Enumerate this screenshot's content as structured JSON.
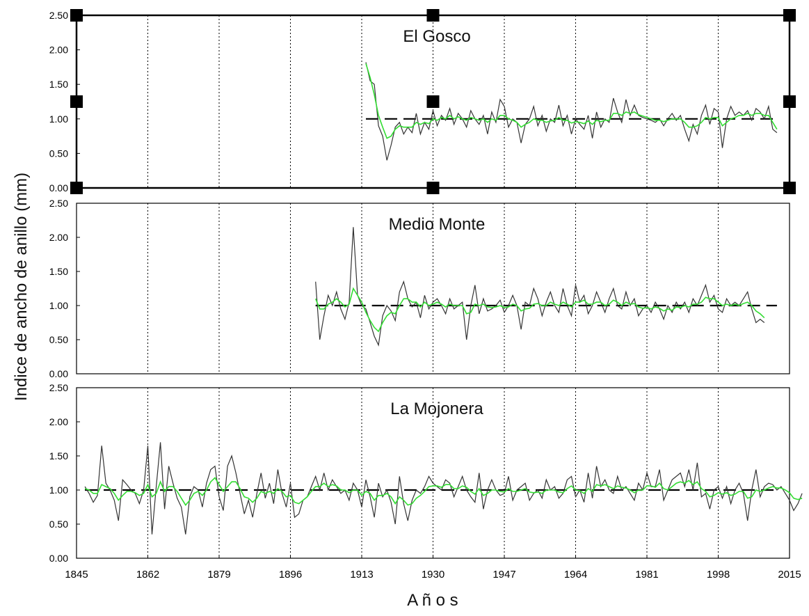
{
  "chart_data": {
    "type": "line",
    "ylabel": "Indice de ancho de anillo (mm)",
    "xlabel": "A ñ o s",
    "xlim": [
      1845,
      2015
    ],
    "xticks": [
      1845,
      1862,
      1879,
      1896,
      1913,
      1930,
      1947,
      1964,
      1981,
      1998,
      2015
    ],
    "yticks": [
      "0.00",
      "0.50",
      "1.00",
      "1.50",
      "2.00",
      "2.50"
    ],
    "ylim": [
      0,
      2.5
    ],
    "grid": "vertical dotted",
    "colors": {
      "index": "#333333",
      "smooth": "#33dd33",
      "mean": "#000000"
    },
    "panels": [
      {
        "title": "El Gosco",
        "selected": true,
        "start": 1914,
        "mean_line": {
          "from": 1914,
          "to": 2012,
          "value": 1.0
        },
        "index": [
          1.82,
          1.55,
          1.5,
          0.9,
          0.75,
          0.4,
          0.62,
          0.88,
          0.95,
          0.78,
          0.88,
          0.8,
          1.08,
          0.78,
          0.95,
          0.85,
          1.12,
          0.9,
          1.05,
          0.98,
          1.15,
          0.92,
          1.08,
          1.0,
          0.88,
          1.12,
          1.0,
          0.92,
          1.05,
          0.78,
          1.1,
          0.95,
          1.28,
          1.18,
          0.88,
          1.0,
          0.95,
          0.65,
          0.92,
          1.0,
          1.18,
          0.9,
          1.05,
          0.82,
          1.0,
          0.95,
          1.2,
          0.9,
          1.05,
          0.78,
          1.0,
          0.92,
          0.85,
          1.05,
          0.72,
          1.1,
          0.88,
          1.0,
          0.95,
          1.3,
          1.1,
          0.95,
          1.28,
          1.05,
          1.2,
          1.05,
          1.02,
          1.0,
          0.98,
          0.95,
          1.0,
          0.9,
          1.0,
          1.08,
          0.98,
          1.05,
          0.85,
          0.68,
          0.92,
          0.78,
          1.05,
          1.2,
          0.92,
          1.15,
          1.1,
          0.58,
          1.0,
          1.18,
          1.05,
          1.1,
          1.05,
          1.12,
          0.98,
          1.15,
          1.1,
          1.0,
          1.18,
          0.85,
          0.8
        ],
        "smooth": [
          1.8,
          1.6,
          1.35,
          1.05,
          0.88,
          0.72,
          0.75,
          0.85,
          0.9,
          0.88,
          0.88,
          0.88,
          0.95,
          0.92,
          0.95,
          0.93,
          1.0,
          0.98,
          1.02,
          1.0,
          1.05,
          1.0,
          1.03,
          1.0,
          0.98,
          1.02,
          1.0,
          0.98,
          1.0,
          0.95,
          1.0,
          0.98,
          1.05,
          1.05,
          1.0,
          0.98,
          0.95,
          0.88,
          0.92,
          0.95,
          1.0,
          0.98,
          0.98,
          0.95,
          0.97,
          0.98,
          1.02,
          0.98,
          0.98,
          0.94,
          0.96,
          0.95,
          0.93,
          0.97,
          0.92,
          0.98,
          0.96,
          0.98,
          0.98,
          1.08,
          1.08,
          1.05,
          1.1,
          1.08,
          1.1,
          1.06,
          1.04,
          1.02,
          1.0,
          0.98,
          0.98,
          0.96,
          0.98,
          1.0,
          1.0,
          1.0,
          0.95,
          0.88,
          0.88,
          0.9,
          0.95,
          1.02,
          1.0,
          1.02,
          1.02,
          0.9,
          0.95,
          1.0,
          1.02,
          1.05,
          1.05,
          1.08,
          1.05,
          1.08,
          1.08,
          1.05,
          1.05,
          0.95,
          0.85
        ]
      },
      {
        "title": "Medio Monte",
        "selected": false,
        "start": 1902,
        "mean_line": {
          "from": 1902,
          "to": 2012,
          "value": 1.0
        },
        "index": [
          1.35,
          0.5,
          0.85,
          1.15,
          1.0,
          1.2,
          0.95,
          0.8,
          1.05,
          2.15,
          1.15,
          1.0,
          0.95,
          0.75,
          0.55,
          0.42,
          0.85,
          1.0,
          0.92,
          0.78,
          1.2,
          1.35,
          1.1,
          0.98,
          1.05,
          0.82,
          1.15,
          0.95,
          1.05,
          1.1,
          1.0,
          0.88,
          1.1,
          0.95,
          1.0,
          1.05,
          0.5,
          1.0,
          1.3,
          0.88,
          1.1,
          0.92,
          0.95,
          1.0,
          1.08,
          0.9,
          1.0,
          1.15,
          1.0,
          0.65,
          1.05,
          1.0,
          1.25,
          1.1,
          0.85,
          1.05,
          1.2,
          1.0,
          0.9,
          1.25,
          1.0,
          0.85,
          1.3,
          1.05,
          1.15,
          0.88,
          1.0,
          1.2,
          1.05,
          0.9,
          1.1,
          1.25,
          1.0,
          0.95,
          1.2,
          1.0,
          1.1,
          0.85,
          0.95,
          1.0,
          0.9,
          1.05,
          0.95,
          0.8,
          1.0,
          0.9,
          1.05,
          0.95,
          1.05,
          0.9,
          1.1,
          1.0,
          1.15,
          1.3,
          1.05,
          1.15,
          0.95,
          0.9,
          1.1,
          1.0,
          1.05,
          1.0,
          1.1,
          1.2,
          0.95,
          0.75,
          0.8,
          0.75
        ],
        "smooth": [
          1.1,
          0.95,
          0.95,
          1.02,
          1.05,
          1.1,
          1.05,
          0.98,
          1.02,
          1.25,
          1.15,
          1.05,
          0.9,
          0.78,
          0.68,
          0.62,
          0.75,
          0.85,
          0.9,
          0.88,
          1.0,
          1.1,
          1.1,
          1.05,
          1.05,
          0.98,
          1.05,
          1.0,
          1.02,
          1.05,
          1.02,
          0.98,
          1.02,
          1.0,
          1.0,
          1.0,
          0.88,
          0.9,
          1.02,
          1.0,
          1.02,
          0.98,
          0.97,
          0.98,
          1.0,
          0.97,
          0.98,
          1.02,
          1.0,
          0.92,
          0.95,
          0.96,
          1.02,
          1.03,
          1.0,
          1.0,
          1.05,
          1.02,
          1.0,
          1.05,
          1.02,
          0.98,
          1.05,
          1.05,
          1.08,
          1.02,
          1.02,
          1.05,
          1.05,
          1.0,
          1.02,
          1.08,
          1.05,
          1.0,
          1.05,
          1.02,
          1.03,
          0.98,
          0.96,
          0.97,
          0.95,
          0.98,
          0.96,
          0.92,
          0.95,
          0.93,
          0.98,
          0.97,
          1.0,
          0.98,
          1.02,
          1.02,
          1.05,
          1.12,
          1.1,
          1.1,
          1.05,
          1.0,
          1.02,
          1.0,
          1.02,
          1.0,
          1.03,
          1.05,
          1.0,
          0.92,
          0.88,
          0.82
        ]
      },
      {
        "title": "La Mojonera",
        "selected": false,
        "start": 1847,
        "mean_line": {
          "from": 1847,
          "to": 2012,
          "value": 1.0
        },
        "index": [
          1.05,
          0.95,
          0.82,
          0.92,
          1.65,
          1.1,
          1.0,
          0.85,
          0.55,
          1.15,
          1.08,
          1.0,
          0.95,
          0.8,
          1.0,
          1.65,
          0.35,
          1.05,
          1.7,
          0.72,
          1.35,
          1.1,
          0.88,
          0.75,
          0.35,
          0.9,
          1.05,
          1.0,
          0.75,
          1.1,
          1.3,
          1.35,
          0.9,
          0.7,
          1.35,
          1.5,
          1.25,
          0.95,
          0.65,
          0.85,
          0.6,
          0.95,
          1.25,
          0.88,
          1.1,
          0.8,
          1.3,
          0.95,
          0.75,
          1.1,
          0.6,
          0.65,
          0.85,
          0.9,
          1.05,
          1.2,
          1.0,
          1.25,
          1.0,
          1.15,
          1.05,
          0.95,
          1.0,
          0.85,
          1.1,
          1.0,
          0.75,
          1.15,
          0.9,
          0.6,
          1.1,
          0.9,
          1.0,
          0.82,
          0.5,
          1.2,
          0.8,
          0.55,
          0.85,
          1.0,
          0.95,
          1.05,
          1.2,
          1.1,
          1.05,
          1.0,
          1.15,
          1.1,
          0.9,
          1.05,
          1.2,
          1.0,
          0.9,
          0.82,
          1.25,
          0.72,
          1.0,
          1.15,
          1.0,
          0.92,
          0.95,
          1.2,
          0.85,
          1.0,
          1.05,
          1.1,
          0.85,
          0.95,
          1.0,
          0.88,
          1.15,
          1.0,
          1.05,
          0.88,
          0.95,
          1.15,
          1.2,
          0.9,
          1.0,
          0.82,
          1.25,
          0.88,
          1.35,
          1.05,
          1.15,
          1.0,
          0.95,
          1.2,
          1.0,
          1.05,
          0.95,
          0.85,
          1.1,
          1.0,
          1.25,
          1.05,
          1.05,
          1.3,
          0.85,
          1.0,
          1.15,
          1.2,
          1.25,
          1.05,
          1.3,
          1.0,
          1.4,
          0.9,
          0.95,
          0.72,
          1.0,
          1.05,
          0.88,
          1.05,
          0.8,
          1.0,
          1.1,
          0.95,
          0.55,
          1.0,
          1.3,
          0.9,
          1.05,
          1.1,
          1.08,
          1.0,
          1.05,
          0.95,
          0.85,
          0.7,
          0.8,
          0.95
        ],
        "smooth": [
          1.02,
          1.0,
          0.95,
          0.95,
          1.08,
          1.05,
          1.02,
          0.95,
          0.85,
          0.92,
          0.98,
          0.98,
          0.96,
          0.92,
          0.95,
          1.08,
          0.9,
          0.95,
          1.12,
          0.98,
          1.05,
          1.05,
          0.98,
          0.88,
          0.78,
          0.85,
          0.95,
          0.98,
          0.92,
          1.0,
          1.12,
          1.18,
          1.08,
          0.98,
          1.05,
          1.12,
          1.12,
          1.02,
          0.9,
          0.88,
          0.82,
          0.88,
          0.98,
          0.95,
          0.98,
          0.95,
          1.02,
          0.98,
          0.9,
          0.92,
          0.82,
          0.8,
          0.85,
          0.9,
          0.98,
          1.05,
          1.05,
          1.1,
          1.05,
          1.08,
          1.06,
          1.0,
          1.0,
          0.96,
          1.0,
          1.0,
          0.92,
          0.98,
          0.95,
          0.85,
          0.92,
          0.92,
          0.95,
          0.9,
          0.8,
          0.9,
          0.85,
          0.78,
          0.8,
          0.88,
          0.92,
          0.98,
          1.05,
          1.06,
          1.06,
          1.04,
          1.08,
          1.08,
          1.02,
          1.02,
          1.06,
          1.04,
          0.98,
          0.94,
          1.02,
          0.92,
          0.95,
          1.0,
          1.0,
          0.98,
          0.97,
          1.02,
          0.98,
          0.98,
          1.0,
          1.02,
          0.97,
          0.96,
          0.97,
          0.95,
          1.0,
          1.0,
          1.0,
          0.97,
          0.96,
          1.02,
          1.06,
          1.0,
          0.99,
          0.95,
          1.02,
          0.98,
          1.08,
          1.06,
          1.08,
          1.05,
          1.02,
          1.06,
          1.04,
          1.03,
          1.0,
          0.96,
          1.0,
          1.0,
          1.06,
          1.06,
          1.04,
          1.1,
          1.02,
          1.0,
          1.05,
          1.1,
          1.12,
          1.1,
          1.14,
          1.08,
          1.12,
          1.02,
          0.98,
          0.9,
          0.92,
          0.96,
          0.94,
          0.96,
          0.92,
          0.94,
          0.98,
          0.98,
          0.88,
          0.9,
          1.0,
          0.98,
          1.0,
          1.03,
          1.05,
          1.03,
          1.03,
          1.0,
          0.96,
          0.88,
          0.86,
          0.88
        ]
      }
    ]
  }
}
